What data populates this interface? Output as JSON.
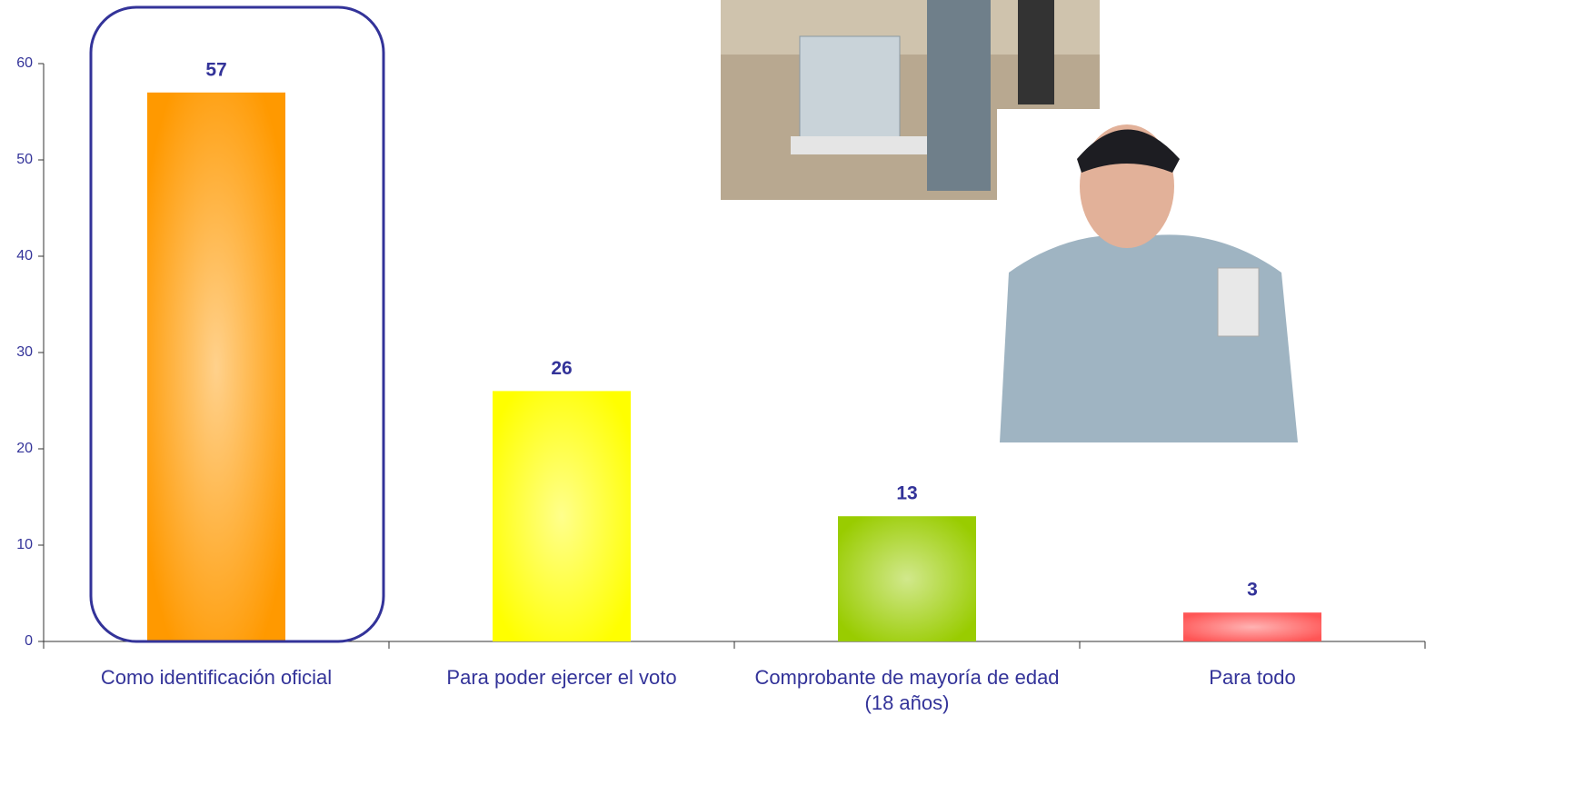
{
  "chart_data": {
    "type": "bar",
    "categories": [
      "Como identificación oficial",
      "Para poder ejercer el voto",
      "Comprobante de mayoría de edad (18 años)",
      "Para todo"
    ],
    "values": [
      57,
      26,
      13,
      3
    ],
    "colors": [
      "#ff9900",
      "#ffff00",
      "#99cc00",
      "#ff5555"
    ],
    "ylim": [
      0,
      60
    ],
    "yticks": [
      0,
      10,
      20,
      30,
      40,
      50,
      60
    ]
  }
}
